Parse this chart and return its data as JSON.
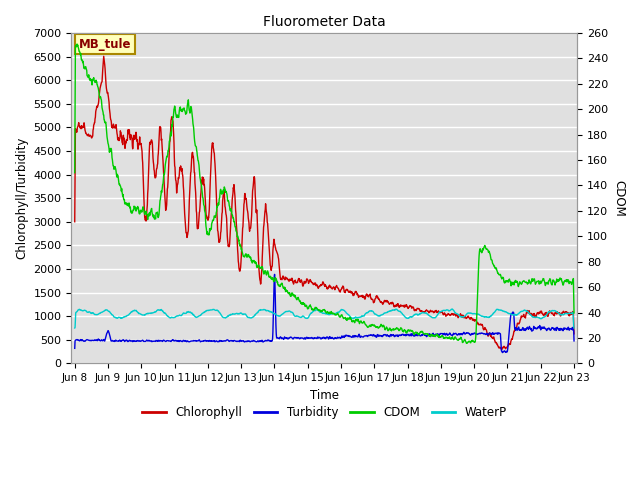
{
  "title": "Fluorometer Data",
  "xlabel": "Time",
  "ylabel_left": "Chlorophyll/Turbidity",
  "ylabel_right": "CDOM",
  "ylim_left": [
    0,
    7000
  ],
  "ylim_right": [
    0,
    260
  ],
  "annotation_text": "MB_tule",
  "annotation_box_facecolor": "#FFFFBB",
  "annotation_box_edgecolor": "#AA8800",
  "bg_color": "#E0E0E0",
  "grid_color": "#FFFFFF",
  "colors": {
    "Chlorophyll": "#CC0000",
    "Turbidity": "#0000DD",
    "CDOM": "#00CC00",
    "WaterP": "#00CCCC"
  },
  "xtick_labels": [
    "Jun 8",
    "Jun 9",
    "Jun 10",
    "Jun 11",
    "Jun 12",
    "Jun 13",
    "Jun 14",
    "Jun 15",
    "Jun 16",
    "Jun 17",
    "Jun 18",
    "Jun 19",
    "Jun 20",
    "Jun 21",
    "Jun 22",
    "Jun 23"
  ],
  "xtick_positions": [
    0,
    1,
    2,
    3,
    4,
    5,
    6,
    7,
    8,
    9,
    10,
    11,
    12,
    13,
    14,
    15
  ],
  "cdom_scale": 26.923
}
